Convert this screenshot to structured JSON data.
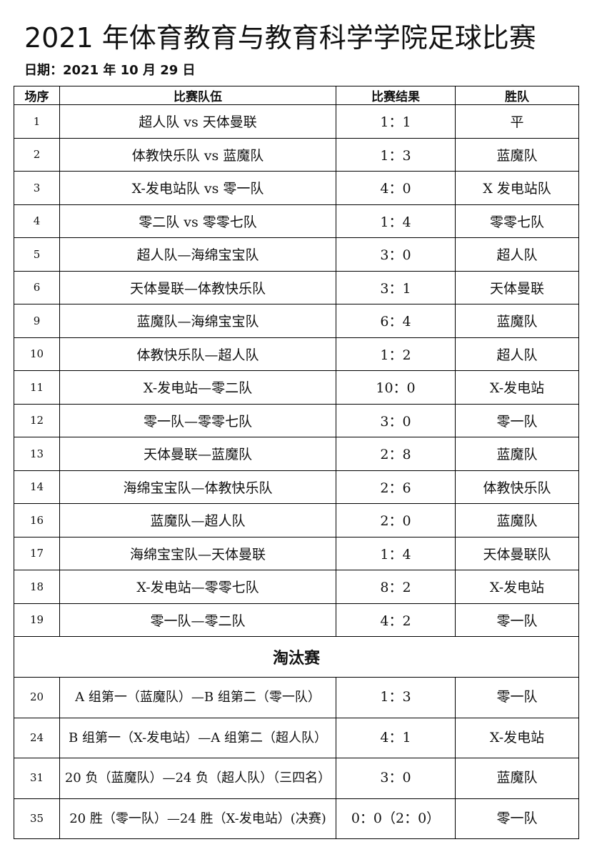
{
  "title": "2021 年体育教育与教育科学学院足球比赛",
  "date": "日期：2021 年 10 月 29 日",
  "columns": [
    "场序",
    "比赛队伍",
    "比赛结果",
    "胜队"
  ],
  "group_matches": [
    {
      "no": "1",
      "teams": "超人队 vs 天体曼联",
      "result": "1：1",
      "winner": "平"
    },
    {
      "no": "2",
      "teams": "体教快乐队 vs 蓝魔队",
      "result": "1：3",
      "winner": "蓝魔队"
    },
    {
      "no": "3",
      "teams": "X-发电站队 vs 零一队",
      "result": "4：0",
      "winner": "X 发电站队"
    },
    {
      "no": "4",
      "teams": "零二队 vs 零零七队",
      "result": "1：4",
      "winner": "零零七队"
    },
    {
      "no": "5",
      "teams": "超人队—海绵宝宝队",
      "result": "3：0",
      "winner": "超人队"
    },
    {
      "no": "6",
      "teams": "天体曼联—体教快乐队",
      "result": "3：1",
      "winner": "天体曼联"
    },
    {
      "no": "9",
      "teams": "蓝魔队—海绵宝宝队",
      "result": "6：4",
      "winner": "蓝魔队"
    },
    {
      "no": "10",
      "teams": "体教快乐队—超人队",
      "result": "1：2",
      "winner": "超人队"
    },
    {
      "no": "11",
      "teams": "X-发电站—零二队",
      "result": "10：0",
      "winner": "X-发电站"
    },
    {
      "no": "12",
      "teams": "零一队—零零七队",
      "result": "3：0",
      "winner": "零一队"
    },
    {
      "no": "13",
      "teams": "天体曼联—蓝魔队",
      "result": "2：8",
      "winner": "蓝魔队"
    },
    {
      "no": "14",
      "teams": "海绵宝宝队—体教快乐队",
      "result": "2：6",
      "winner": "体教快乐队"
    },
    {
      "no": "16",
      "teams": "蓝魔队—超人队",
      "result": "2：0",
      "winner": "蓝魔队"
    },
    {
      "no": "17",
      "teams": "海绵宝宝队—天体曼联",
      "result": "1：4",
      "winner": "天体曼联队"
    },
    {
      "no": "18",
      "teams": "X-发电站—零零七队",
      "result": "8：2",
      "winner": "X-发电站"
    },
    {
      "no": "19",
      "teams": "零一队—零二队",
      "result": "4：2",
      "winner": "零一队"
    }
  ],
  "knockout_title": "淘汰赛",
  "knockout_matches": [
    {
      "no": "20",
      "teams": "A 组第一（蓝魔队）—B 组第二（零一队）",
      "result": "1：3",
      "winner": "零一队"
    },
    {
      "no": "24",
      "teams": "B 组第一（X-发电站）—A 组第二（超人队）",
      "result": "4：1",
      "winner": "X-发电站"
    },
    {
      "no": "31",
      "teams": "20 负（蓝魔队）—24 负（超人队）（三四名）",
      "result": "3：0",
      "winner": "蓝魔队"
    },
    {
      "no": "35",
      "teams": "20 胜（零一队）—24 胜（X-发电站）(决赛)",
      "result": "0：0（2：0）",
      "winner": "零一队"
    }
  ]
}
